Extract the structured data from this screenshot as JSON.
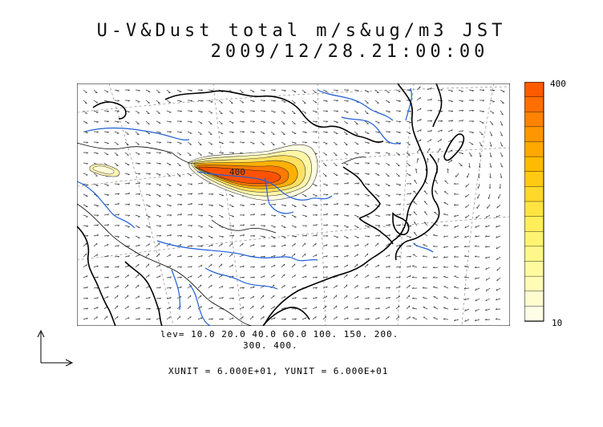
{
  "title": {
    "line1": "U-V&Dust total m/s&ug/m3 JST",
    "line2": "2009/12/28.21:00:00"
  },
  "map": {
    "contour_label": "400",
    "coast_color": "#000000",
    "river_color": "#1f5fd6",
    "grid_color": "#8a8a8a",
    "vector_color": "#222222"
  },
  "colorbar": {
    "max_label": "400",
    "min_label": "10",
    "colors": [
      "#ff5a00",
      "#ff6e00",
      "#ff8200",
      "#ff9600",
      "#ffa800",
      "#ffbb00",
      "#ffca10",
      "#ffd828",
      "#ffe440",
      "#ffee58",
      "#fff470",
      "#fff888",
      "#fffaa0",
      "#fffcb8",
      "#fffdd0",
      "#fffee6"
    ]
  },
  "legend": {
    "levels_line1": "lev= 10.0 20.0 40.0 60.0 100. 150. 200.",
    "levels_line2": "300. 400.",
    "unit_line": "XUNIT = 6.000E+01, YUNIT = 6.000E+01"
  }
}
